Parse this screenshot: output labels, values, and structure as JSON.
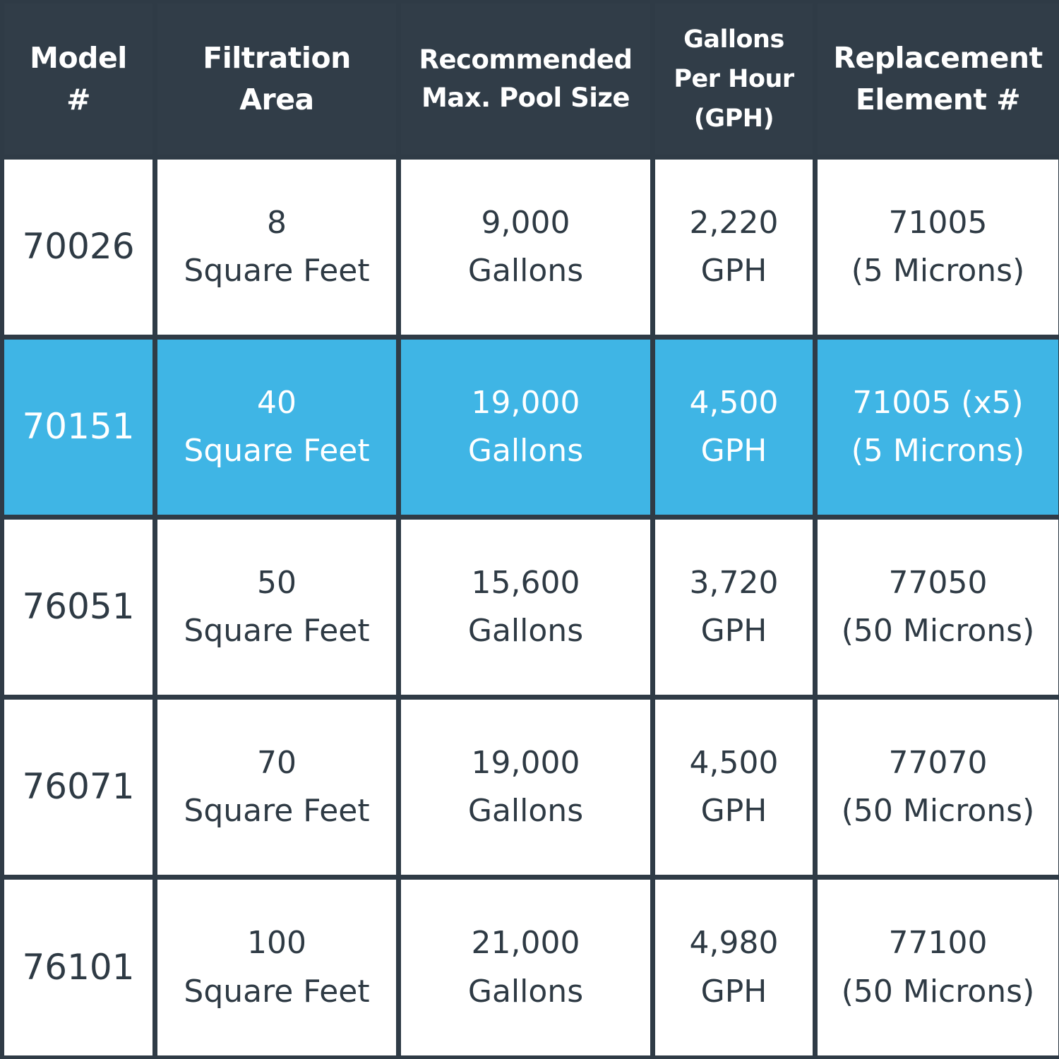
{
  "headers": [
    {
      "line1": "Model",
      "line2": "#"
    },
    {
      "line1": "Filtration",
      "line2": "Area"
    },
    {
      "line1": "Recommended",
      "line2": "Max. Pool Size"
    },
    {
      "line1": "Gallons",
      "line2": "Per Hour",
      "line3": "(GPH)"
    },
    {
      "line1": "Replacement",
      "line2": "Element #"
    }
  ],
  "rows": [
    {
      "model": "70026",
      "area_value": "8",
      "area_unit": "Square Feet",
      "pool_value": "9,000",
      "pool_unit": "Gallons",
      "gph_value": "2,220",
      "gph_unit": "GPH",
      "element_value": "71005",
      "element_note": "(5 Microns)",
      "highlighted": false
    },
    {
      "model": "70151",
      "area_value": "40",
      "area_unit": "Square Feet",
      "pool_value": "19,000",
      "pool_unit": "Gallons",
      "gph_value": "4,500",
      "gph_unit": "GPH",
      "element_value": "71005 (x5)",
      "element_note": "(5 Microns)",
      "highlighted": true
    },
    {
      "model": "76051",
      "area_value": "50",
      "area_unit": "Square Feet",
      "pool_value": "15,600",
      "pool_unit": "Gallons",
      "gph_value": "3,720",
      "gph_unit": "GPH",
      "element_value": "77050",
      "element_note": "(50 Microns)",
      "highlighted": false
    },
    {
      "model": "76071",
      "area_value": "70",
      "area_unit": "Square Feet",
      "pool_value": "19,000",
      "pool_unit": "Gallons",
      "gph_value": "4,500",
      "gph_unit": "GPH",
      "element_value": "77070",
      "element_note": "(50 Microns)",
      "highlighted": false
    },
    {
      "model": "76101",
      "area_value": "100",
      "area_unit": "Square Feet",
      "pool_value": "21,000",
      "pool_unit": "Gallons",
      "gph_value": "4,980",
      "gph_unit": "GPH",
      "element_value": "77100",
      "element_note": "(50 Microns)",
      "highlighted": false
    }
  ],
  "colors": {
    "header_bg": "#313d48",
    "grid_line": "#2f3b46",
    "highlight_bg": "#3fb5e5",
    "text_dark": "#2e3a44"
  }
}
